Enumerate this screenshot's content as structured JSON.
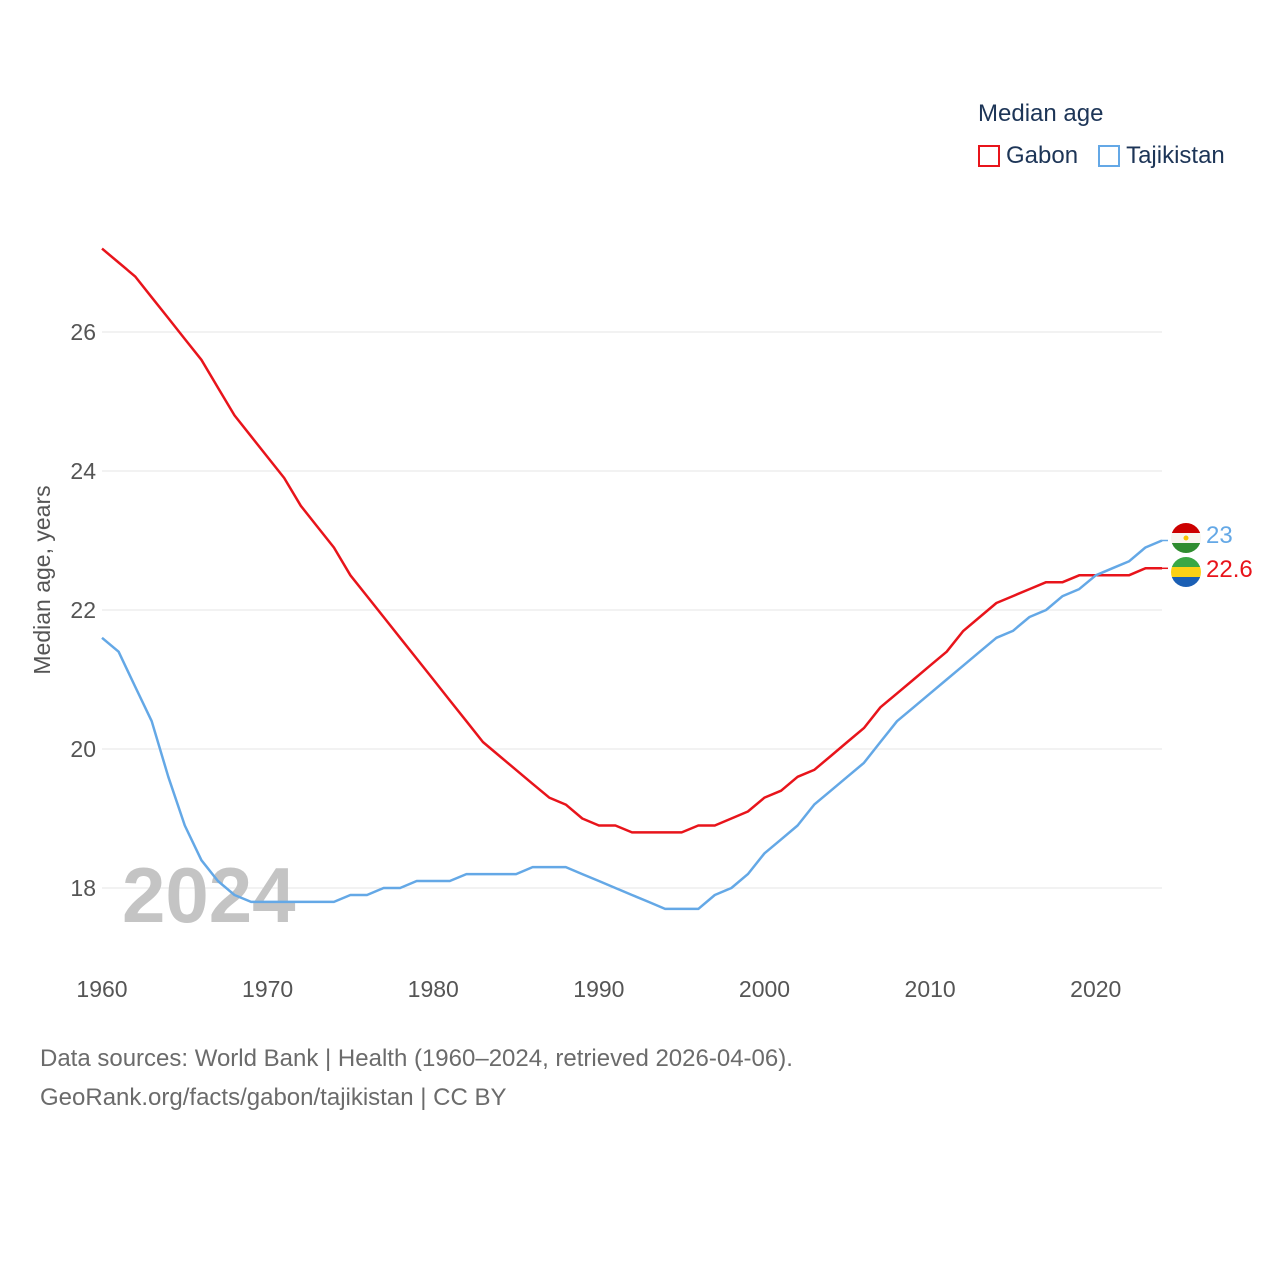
{
  "legend": {
    "title": "Median age",
    "items": [
      {
        "label": "Gabon",
        "color": "#e8141b"
      },
      {
        "label": "Tajikistan",
        "color": "#64a8e6"
      }
    ]
  },
  "year_watermark": "2024",
  "footer": {
    "line1": "Data sources: World Bank | Health (1960–2024, retrieved 2026-04-06).",
    "line2": "GeoRank.org/facts/gabon/tajikistan | CC BY"
  },
  "chart_data": {
    "type": "line",
    "title": "Median age",
    "xlabel": "",
    "ylabel": "Median age, years",
    "xlim": [
      1960,
      2024
    ],
    "ylim": [
      17,
      27.5
    ],
    "x_ticks": [
      1960,
      1970,
      1980,
      1990,
      2000,
      2010,
      2020
    ],
    "y_ticks": [
      18,
      20,
      22,
      24,
      26
    ],
    "grid": true,
    "legend_position": "top-right",
    "x": [
      1960,
      1961,
      1962,
      1963,
      1964,
      1965,
      1966,
      1967,
      1968,
      1969,
      1970,
      1971,
      1972,
      1973,
      1974,
      1975,
      1976,
      1977,
      1978,
      1979,
      1980,
      1981,
      1982,
      1983,
      1984,
      1985,
      1986,
      1987,
      1988,
      1989,
      1990,
      1991,
      1992,
      1993,
      1994,
      1995,
      1996,
      1997,
      1998,
      1999,
      2000,
      2001,
      2002,
      2003,
      2004,
      2005,
      2006,
      2007,
      2008,
      2009,
      2010,
      2011,
      2012,
      2013,
      2014,
      2015,
      2016,
      2017,
      2018,
      2019,
      2020,
      2021,
      2022,
      2023,
      2024
    ],
    "series": [
      {
        "name": "Gabon",
        "color": "#e8141b",
        "end_label": "22.6",
        "values": [
          27.2,
          27.0,
          26.8,
          26.5,
          26.2,
          25.9,
          25.6,
          25.2,
          24.8,
          24.5,
          24.2,
          23.9,
          23.5,
          23.2,
          22.9,
          22.5,
          22.2,
          21.9,
          21.6,
          21.3,
          21.0,
          20.7,
          20.4,
          20.1,
          19.9,
          19.7,
          19.5,
          19.3,
          19.2,
          19.0,
          18.9,
          18.9,
          18.8,
          18.8,
          18.8,
          18.8,
          18.9,
          18.9,
          19.0,
          19.1,
          19.3,
          19.4,
          19.6,
          19.7,
          19.9,
          20.1,
          20.3,
          20.6,
          20.8,
          21.0,
          21.2,
          21.4,
          21.7,
          21.9,
          22.1,
          22.2,
          22.3,
          22.4,
          22.4,
          22.5,
          22.5,
          22.5,
          22.5,
          22.6,
          22.6
        ]
      },
      {
        "name": "Tajikistan",
        "color": "#64a8e6",
        "end_label": "23",
        "values": [
          21.6,
          21.4,
          20.9,
          20.4,
          19.6,
          18.9,
          18.4,
          18.1,
          17.9,
          17.8,
          17.8,
          17.8,
          17.8,
          17.8,
          17.8,
          17.9,
          17.9,
          18.0,
          18.0,
          18.1,
          18.1,
          18.1,
          18.2,
          18.2,
          18.2,
          18.2,
          18.3,
          18.3,
          18.3,
          18.2,
          18.1,
          18.0,
          17.9,
          17.8,
          17.7,
          17.7,
          17.7,
          17.9,
          18.0,
          18.2,
          18.5,
          18.7,
          18.9,
          19.2,
          19.4,
          19.6,
          19.8,
          20.1,
          20.4,
          20.6,
          20.8,
          21.0,
          21.2,
          21.4,
          21.6,
          21.7,
          21.9,
          22.0,
          22.2,
          22.3,
          22.5,
          22.6,
          22.7,
          22.9,
          23.0
        ]
      }
    ]
  }
}
